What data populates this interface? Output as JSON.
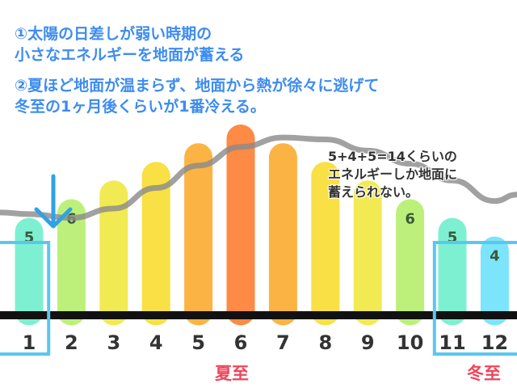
{
  "notes": {
    "line1": "①太陽の日差しが弱い時期の",
    "line2": "小さなエネルギーを地面が蓄える",
    "line3": "②夏ほど地面が温まらず、地面から熱が徐々に逃げて",
    "line4": "冬至の1ヶ月後くらいが1番冷える。"
  },
  "side_note": {
    "line1": "5+4+5=14くらいの",
    "line2": "エネルギーしか地面に",
    "line3": "蓄えられない。"
  },
  "season_labels": {
    "summer_solstice": "夏至",
    "winter_solstice": "冬至"
  },
  "colors": {
    "note_text": "#3d8cf0",
    "highlight_box": "#5bc7ee",
    "arrow": "#2fa2e8",
    "curve": "#8a8a8a",
    "season_text": "#f0445a",
    "baseline": "#111111"
  },
  "icons": {
    "arrow": "down-arrow-icon"
  },
  "chart_data": {
    "type": "bar",
    "categories": [
      "1",
      "2",
      "3",
      "4",
      "5",
      "6",
      "7",
      "8",
      "9",
      "10",
      "11",
      "12"
    ],
    "values": [
      5,
      6,
      7,
      8,
      9,
      10,
      9,
      8,
      7,
      6,
      5,
      4
    ],
    "data_labels": [
      "5",
      "6",
      "",
      "",
      "",
      "",
      "",
      "",
      "",
      "6",
      "5",
      "4"
    ],
    "bar_colors": [
      "#7ef0d2",
      "#bdf07a",
      "#f2ea52",
      "#f8e045",
      "#fbb444",
      "#fd8a45",
      "#fbb444",
      "#f8e045",
      "#f2ea52",
      "#bdf07a",
      "#7ef0d2",
      "#7ce4fb"
    ],
    "overlay_line": {
      "description": "ground temperature trend (gray curve)",
      "values": [
        5.2,
        5.0,
        5.5,
        6.6,
        7.8,
        8.8,
        9.3,
        9.2,
        8.6,
        7.9,
        7.0,
        5.9
      ]
    },
    "highlighted_months": [
      "1",
      "11",
      "12"
    ],
    "ylim": [
      0,
      10
    ],
    "xlabel": "",
    "ylabel": "",
    "grid": false
  }
}
